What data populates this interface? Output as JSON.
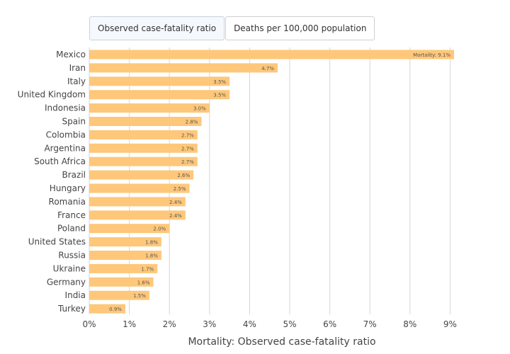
{
  "tabs": [
    {
      "label": "Observed case-fatality ratio",
      "active": true
    },
    {
      "label": "Deaths per 100,000 population",
      "active": false
    }
  ],
  "colors": {
    "bar": "#fec77a",
    "grid": "#d6d6d6"
  },
  "chart_data": {
    "type": "bar",
    "orientation": "horizontal",
    "categories": [
      "Mexico",
      "Iran",
      "Italy",
      "United Kingdom",
      "Indonesia",
      "Spain",
      "Colombia",
      "Argentina",
      "South Africa",
      "Brazil",
      "Hungary",
      "Romania",
      "France",
      "Poland",
      "United States",
      "Russia",
      "Ukraine",
      "Germany",
      "India",
      "Turkey"
    ],
    "values": [
      9.1,
      4.7,
      3.5,
      3.5,
      3.0,
      2.8,
      2.7,
      2.7,
      2.7,
      2.6,
      2.5,
      2.4,
      2.4,
      2.0,
      1.8,
      1.8,
      1.7,
      1.6,
      1.5,
      0.9
    ],
    "data_labels": [
      "Mortality: 9.1%",
      "4.7%",
      "3.5%",
      "3.5%",
      "3.0%",
      "2.8%",
      "2.7%",
      "2.7%",
      "2.7%",
      "2.6%",
      "2.5%",
      "2.4%",
      "2.4%",
      "2.0%",
      "1.8%",
      "1.8%",
      "1.7%",
      "1.6%",
      "1.5%",
      "0.9%"
    ],
    "xlabel": "Mortality: Observed case-fatality ratio",
    "xlim": [
      0,
      9.25
    ],
    "xticks": [
      0,
      1,
      2,
      3,
      4,
      5,
      6,
      7,
      8,
      9
    ],
    "xtick_labels": [
      "0%",
      "1%",
      "2%",
      "3%",
      "4%",
      "5%",
      "6%",
      "7%",
      "8%",
      "9%"
    ],
    "grid": true
  }
}
